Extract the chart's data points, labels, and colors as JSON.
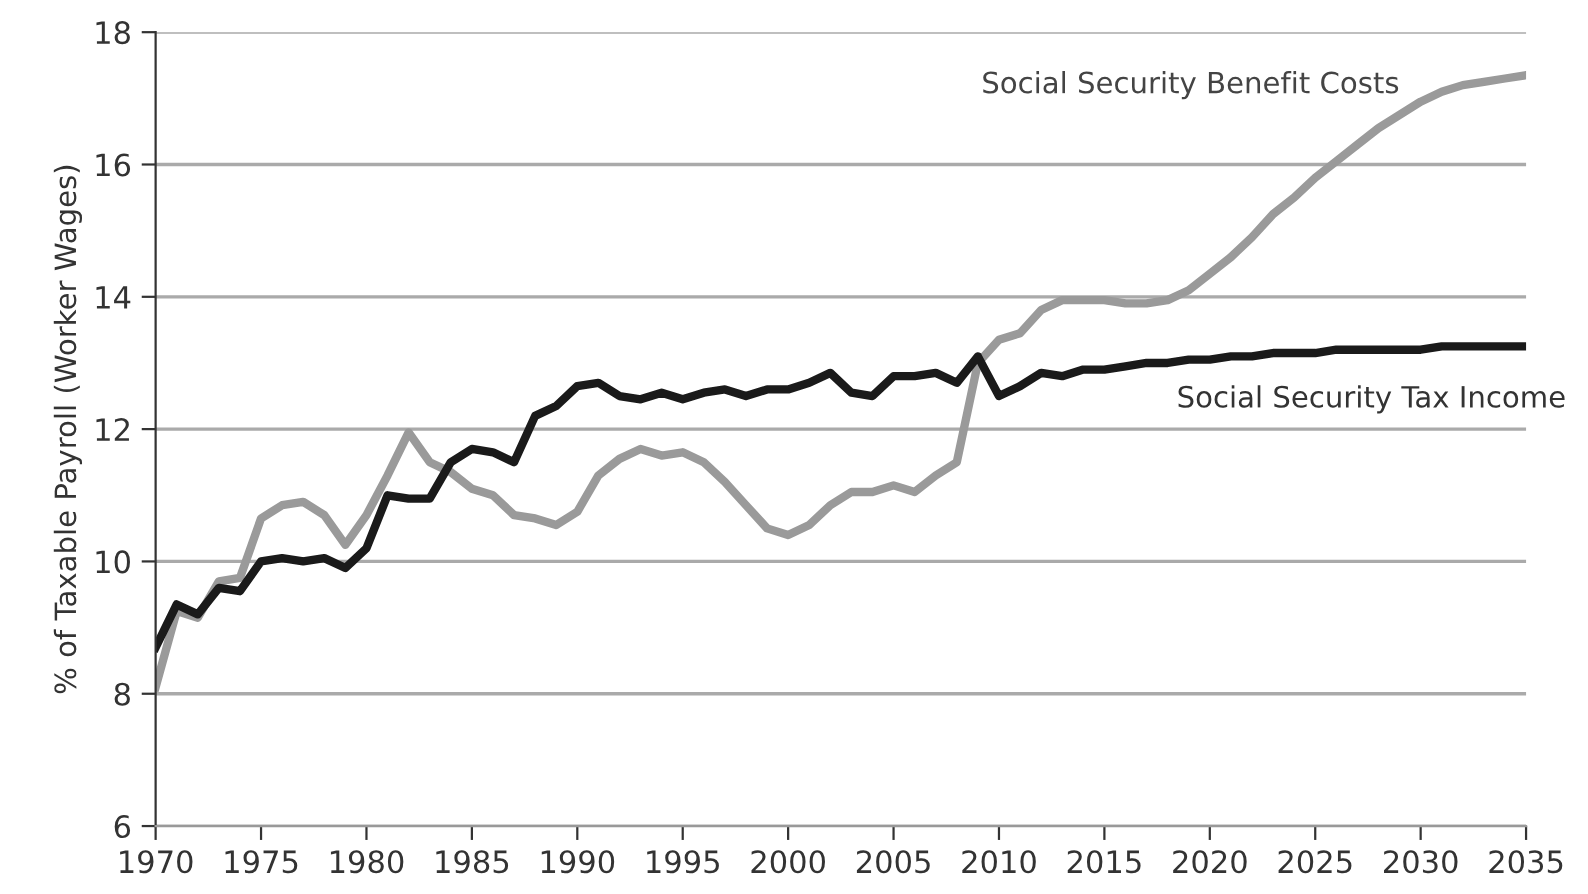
{
  "chart_data": {
    "type": "line",
    "ylabel": "% of Taxable Payroll (Worker Wages)",
    "x": [
      1970,
      1971,
      1972,
      1973,
      1974,
      1975,
      1976,
      1977,
      1978,
      1979,
      1980,
      1981,
      1982,
      1983,
      1984,
      1985,
      1986,
      1987,
      1988,
      1989,
      1990,
      1991,
      1992,
      1993,
      1994,
      1995,
      1996,
      1997,
      1998,
      1999,
      2000,
      2001,
      2002,
      2003,
      2004,
      2005,
      2006,
      2007,
      2008,
      2009,
      2010,
      2011,
      2012,
      2013,
      2014,
      2015,
      2016,
      2017,
      2018,
      2019,
      2020,
      2021,
      2022,
      2023,
      2024,
      2025,
      2026,
      2027,
      2028,
      2029,
      2030,
      2031,
      2032,
      2033,
      2034,
      2035
    ],
    "series": [
      {
        "name": "Social Security Benefit Costs",
        "color": "#9a9a9a",
        "values": [
          8.1,
          9.25,
          9.15,
          9.7,
          9.75,
          10.65,
          10.85,
          10.9,
          10.7,
          10.25,
          10.7,
          11.3,
          11.95,
          11.5,
          11.35,
          11.1,
          11.0,
          10.7,
          10.65,
          10.55,
          10.75,
          11.3,
          11.55,
          11.7,
          11.6,
          11.65,
          11.5,
          11.2,
          10.85,
          10.5,
          10.4,
          10.55,
          10.85,
          11.05,
          11.05,
          11.15,
          11.05,
          11.3,
          11.5,
          13.0,
          13.35,
          13.45,
          13.8,
          13.95,
          13.95,
          13.95,
          13.9,
          13.9,
          13.95,
          14.1,
          14.35,
          14.6,
          14.9,
          15.25,
          15.5,
          15.8,
          16.05,
          16.3,
          16.55,
          16.75,
          16.95,
          17.1,
          17.2,
          17.25,
          17.3,
          17.35
        ]
      },
      {
        "name": "Social Security Tax Income",
        "color": "#1a1a1a",
        "values": [
          8.7,
          9.35,
          9.2,
          9.6,
          9.55,
          10.0,
          10.05,
          10.0,
          10.05,
          9.9,
          10.2,
          11.0,
          10.95,
          10.95,
          11.5,
          11.7,
          11.65,
          11.5,
          12.2,
          12.35,
          12.65,
          12.7,
          12.5,
          12.45,
          12.55,
          12.45,
          12.55,
          12.6,
          12.5,
          12.6,
          12.6,
          12.7,
          12.85,
          12.55,
          12.5,
          12.8,
          12.8,
          12.85,
          12.7,
          13.1,
          12.5,
          12.65,
          12.85,
          12.8,
          12.9,
          12.9,
          12.95,
          13.0,
          13.0,
          13.05,
          13.05,
          13.1,
          13.1,
          13.15,
          13.15,
          13.15,
          13.2,
          13.2,
          13.2,
          13.2,
          13.2,
          13.25,
          13.25,
          13.25,
          13.25,
          13.25
        ]
      }
    ],
    "xlim": [
      1970,
      2035
    ],
    "xticks": [
      1970,
      1975,
      1980,
      1985,
      1990,
      1995,
      2000,
      2005,
      2010,
      2015,
      2020,
      2025,
      2030,
      2035
    ],
    "ylim": [
      6,
      18
    ],
    "yticks": [
      6,
      8,
      10,
      12,
      14,
      16,
      18
    ],
    "grid": "y",
    "legend": false,
    "marker": "none",
    "line_style": "solid"
  }
}
